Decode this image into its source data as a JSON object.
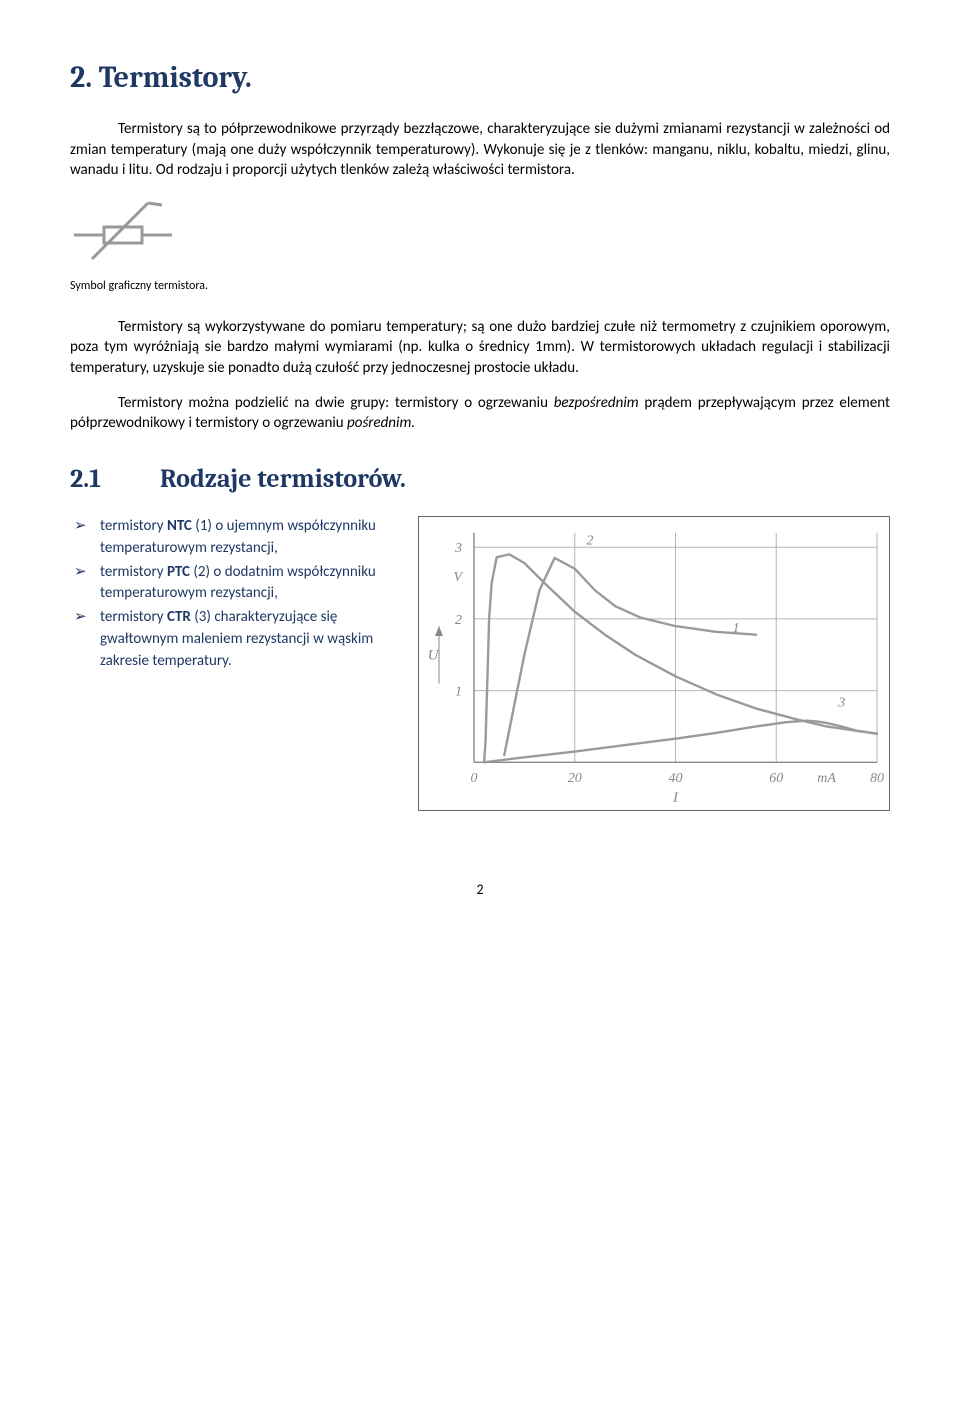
{
  "h1": "2. Termistory.",
  "p1": "Termistory są to półprzewodnikowe przyrządy bezzłączowe, charakteryzujące sie dużymi zmianami rezystancji w zależności od zmian temperatury (mają one duży współczynnik temperaturowy). Wykonuje się je z tlenków: manganu, niklu, kobaltu, miedzi, glinu, wanadu i litu. Od rodzaju i proporcji użytych tlenków zależą właściwości termistora.",
  "symbol_caption": "Symbol graficzny termistora.",
  "p2": "Termistory są wykorzystywane do pomiaru temperatury; są one dużo bardziej czułe niż termometry z czujnikiem oporowym, poza tym wyróżniają sie bardzo małymi wymiarami (np. kulka o średnicy 1mm). W termistorowych układach regulacji i stabilizacji temperatury, uzyskuje sie ponadto dużą czułość przy jednoczesnej prostocie układu.",
  "p3_a": "Termistory można podzielić na dwie grupy: termistory o ogrzewaniu ",
  "p3_b": "bezpośrednim",
  "p3_c": " prądem przepływającym przez element półprzewodnikowy i termistory o ogrzewaniu ",
  "p3_d": "pośrednim.",
  "h2_num": "2.1",
  "h2_title": "Rodzaje termistorów.",
  "bullets": [
    {
      "pre": "termistory ",
      "bold": "NTC",
      "post": " (1) o ujemnym współczynniku temperaturowym rezystancji,"
    },
    {
      "pre": "termistory ",
      "bold": "PTC",
      "post": " (2) o dodatnim współczynniku temperaturowym rezystancji,"
    },
    {
      "pre": "termistory ",
      "bold": "CTR",
      "post": " (3) charakteryzujące się gwałtownym maleniem rezystancji w wąskim zakresie temperatury."
    }
  ],
  "chart": {
    "xlim": [
      0,
      80
    ],
    "ylim": [
      0,
      3.2
    ],
    "xticks": [
      0,
      20,
      40,
      60,
      80
    ],
    "yticks": [
      1,
      2,
      3
    ],
    "xtick_labels": [
      "0",
      "20",
      "40",
      "60",
      "80"
    ],
    "ytick_labels": [
      "1",
      "2",
      "3"
    ],
    "x_unit_label": "mA",
    "x_unit_pos": 70,
    "y_unit_label": "V",
    "y_unit_pos": 2.6,
    "y_axis_label": "U",
    "x_axis_label": "I",
    "grid_color": "#b5b5b5",
    "stroke_color": "#9a9a9a",
    "axis_color": "#888888",
    "bg": "#ffffff",
    "label_2_pos": [
      23,
      3.04
    ],
    "label_1_pos": [
      52,
      1.82
    ],
    "label_3_pos": [
      73,
      0.78
    ],
    "curves": {
      "c1": [
        [
          2,
          0.0
        ],
        [
          2.3,
          0.3
        ],
        [
          2.5,
          0.8
        ],
        [
          2.8,
          1.5
        ],
        [
          3,
          2.0
        ],
        [
          3.5,
          2.5
        ],
        [
          4.5,
          2.86
        ],
        [
          7,
          2.9
        ],
        [
          10,
          2.78
        ],
        [
          14,
          2.5
        ],
        [
          20,
          2.1
        ],
        [
          26,
          1.78
        ],
        [
          32,
          1.5
        ],
        [
          40,
          1.2
        ],
        [
          48,
          0.95
        ],
        [
          56,
          0.75
        ],
        [
          64,
          0.6
        ],
        [
          70,
          0.5
        ],
        [
          76,
          0.44
        ],
        [
          80,
          0.4
        ]
      ],
      "c2": [
        [
          6,
          0.1
        ],
        [
          10,
          1.5
        ],
        [
          13,
          2.4
        ],
        [
          16,
          2.85
        ],
        [
          20,
          2.7
        ],
        [
          24,
          2.4
        ],
        [
          28,
          2.18
        ],
        [
          33,
          2.02
        ],
        [
          40,
          1.9
        ],
        [
          48,
          1.82
        ],
        [
          56,
          1.78
        ]
      ],
      "c3": [
        [
          2,
          0.0
        ],
        [
          10,
          0.07
        ],
        [
          20,
          0.15
        ],
        [
          30,
          0.24
        ],
        [
          40,
          0.33
        ],
        [
          48,
          0.41
        ],
        [
          56,
          0.5
        ],
        [
          62,
          0.56
        ],
        [
          66,
          0.58
        ],
        [
          68,
          0.57
        ],
        [
          70,
          0.55
        ],
        [
          73,
          0.5
        ],
        [
          76,
          0.44
        ],
        [
          80,
          0.4
        ]
      ]
    }
  },
  "page_number": "2"
}
